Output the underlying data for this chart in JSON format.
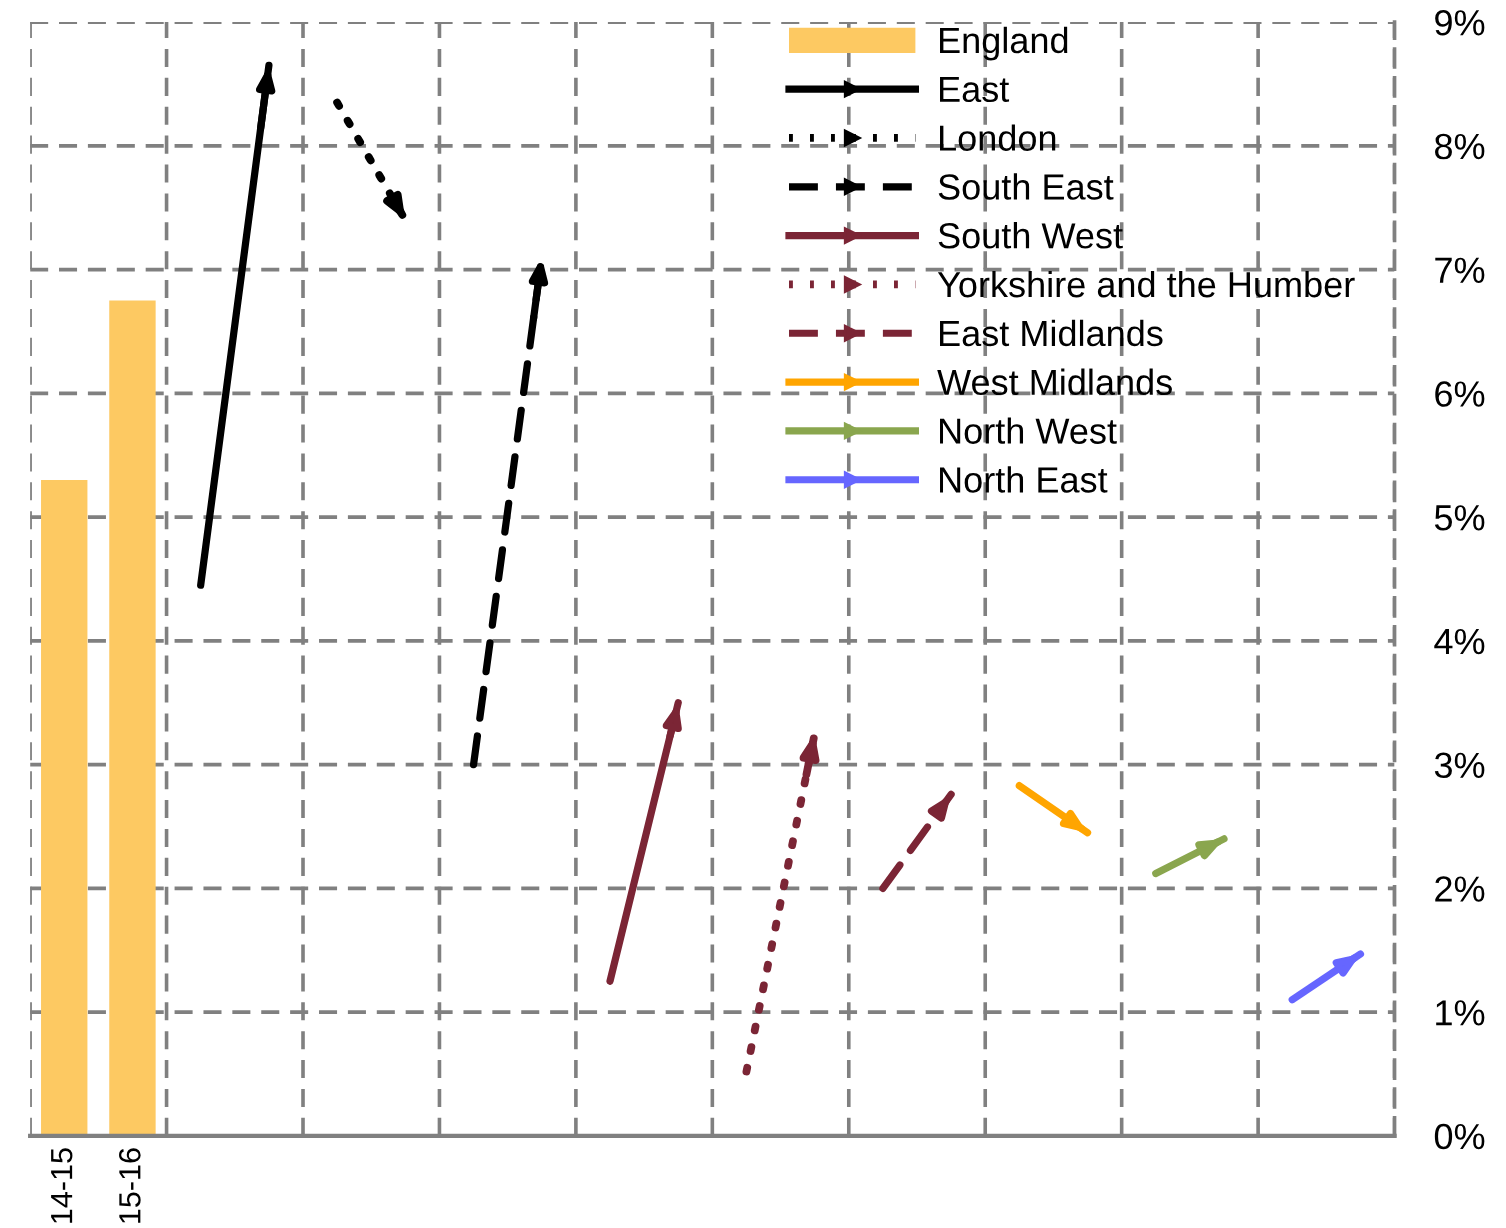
{
  "chart_data": {
    "type": "bar",
    "categories": [
      "14-15",
      "15-16",
      null,
      null,
      null,
      null,
      null,
      null,
      null,
      null,
      null,
      null,
      null,
      null,
      null,
      null,
      null,
      null,
      null,
      null
    ],
    "series": [
      {
        "name": "England",
        "color": "#fdc962",
        "values": [
          5.3,
          6.75,
          null,
          null,
          null,
          null,
          null,
          null,
          null,
          null,
          null,
          null,
          null,
          null,
          null,
          null,
          null,
          null,
          null,
          null
        ]
      },
      {
        "name": "East",
        "type": "line",
        "color": "#000000",
        "line_style": "solid",
        "values": [
          null,
          null,
          4.45,
          8.65,
          null,
          null,
          null,
          null,
          null,
          null,
          null,
          null,
          null,
          null,
          null,
          null,
          null,
          null,
          null,
          null
        ]
      },
      {
        "name": "London",
        "type": "line",
        "color": "#000000",
        "line_style": "dotted",
        "values": [
          null,
          null,
          null,
          null,
          8.35,
          7.4,
          null,
          null,
          null,
          null,
          null,
          null,
          null,
          null,
          null,
          null,
          null,
          null,
          null,
          null
        ]
      },
      {
        "name": "South East",
        "type": "line",
        "color": "#000000",
        "line_style": "dashed",
        "values": [
          null,
          null,
          null,
          null,
          null,
          null,
          3.0,
          7.1,
          null,
          null,
          null,
          null,
          null,
          null,
          null,
          null,
          null,
          null,
          null,
          null
        ]
      },
      {
        "name": "South West",
        "type": "line",
        "color": "#7b2535",
        "line_style": "solid",
        "values": [
          null,
          null,
          null,
          null,
          null,
          null,
          null,
          null,
          1.25,
          3.5,
          null,
          null,
          null,
          null,
          null,
          null,
          null,
          null,
          null,
          null
        ]
      },
      {
        "name": "Yorkshire and the Humber",
        "type": "line",
        "color": "#7b2535",
        "line_style": "dotted",
        "values": [
          null,
          null,
          null,
          null,
          null,
          null,
          null,
          null,
          null,
          null,
          0.52,
          3.25,
          null,
          null,
          null,
          null,
          null,
          null,
          null,
          null
        ]
      },
      {
        "name": "East Midlands",
        "type": "line",
        "color": "#7b2535",
        "line_style": "dashed",
        "values": [
          null,
          null,
          null,
          null,
          null,
          null,
          null,
          null,
          null,
          null,
          null,
          null,
          2.0,
          2.76,
          null,
          null,
          null,
          null,
          null,
          null
        ]
      },
      {
        "name": "West Midlands",
        "type": "line",
        "color": "#ffa500",
        "line_style": "solid",
        "values": [
          null,
          null,
          null,
          null,
          null,
          null,
          null,
          null,
          null,
          null,
          null,
          null,
          null,
          null,
          2.83,
          2.45,
          null,
          null,
          null,
          null
        ]
      },
      {
        "name": "North West",
        "type": "line",
        "color": "#8aa64e",
        "line_style": "solid",
        "values": [
          null,
          null,
          null,
          null,
          null,
          null,
          null,
          null,
          null,
          null,
          null,
          null,
          null,
          null,
          null,
          null,
          2.12,
          2.4,
          null,
          null
        ]
      },
      {
        "name": "North East",
        "type": "line",
        "color": "#6666ff",
        "line_style": "solid",
        "values": [
          null,
          null,
          null,
          null,
          null,
          null,
          null,
          null,
          null,
          null,
          null,
          null,
          null,
          null,
          null,
          null,
          null,
          null,
          1.1,
          1.47
        ]
      }
    ],
    "ylim": [
      0,
      9
    ],
    "yticks": [
      {
        "value": 0,
        "label": "0%"
      },
      {
        "value": 1,
        "label": "1%"
      },
      {
        "value": 2,
        "label": "2%"
      },
      {
        "value": 3,
        "label": "3%"
      },
      {
        "value": 4,
        "label": "4%"
      },
      {
        "value": 5,
        "label": "5%"
      },
      {
        "value": 6,
        "label": "6%"
      },
      {
        "value": 7,
        "label": "7%"
      },
      {
        "value": 8,
        "label": "8%"
      },
      {
        "value": 9,
        "label": "9%"
      }
    ],
    "grid": true,
    "legend": "top right"
  }
}
